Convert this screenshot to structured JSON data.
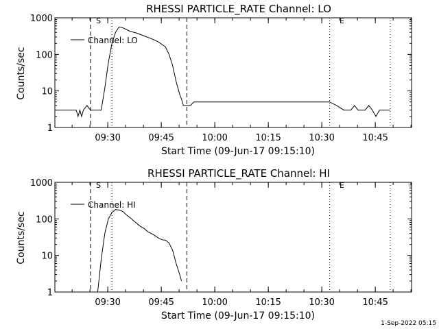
{
  "footer": {
    "date_stamp": "1-Sep-2022 05:15"
  },
  "chart_data": [
    {
      "type": "line",
      "title": "RHESSI PARTICLE_RATE Channel: LO",
      "xlabel": "Start Time (09-Jun-17 09:15:10)",
      "ylabel": "Counts/sec",
      "y_scale": "log",
      "ylim": [
        1,
        1000
      ],
      "xlim": [
        "09:15:10",
        "10:55:10"
      ],
      "y_ticks": [
        "1",
        "10",
        "100",
        "1000"
      ],
      "x_ticks": [
        "09:30",
        "09:45",
        "10:00",
        "10:15",
        "10:30",
        "10:45"
      ],
      "legend": {
        "label": "Channel: LO",
        "position": "top-left"
      },
      "markers": [
        {
          "label": "S",
          "time": "09:25:10",
          "style": "dashed"
        },
        {
          "label": "",
          "time": "09:31:10",
          "style": "dotted"
        },
        {
          "label": "",
          "time": "09:52:10",
          "style": "dashed"
        },
        {
          "label": "E",
          "time": "10:32:10",
          "style": "dotted"
        },
        {
          "label": "",
          "time": "10:49:10",
          "style": "dotted"
        }
      ],
      "series": [
        {
          "name": "Channel: LO",
          "x": [
            "09:15:10",
            "09:19:10",
            "09:21:10",
            "09:21:40",
            "09:22:10",
            "09:22:40",
            "09:23:10",
            "09:24:10",
            "09:25:10",
            "09:26:10",
            "09:27:10",
            "09:28:10",
            "09:29:10",
            "09:30:10",
            "09:31:10",
            "09:32:10",
            "09:33:10",
            "09:34:10",
            "09:35:10",
            "09:36:10",
            "09:38:10",
            "09:40:10",
            "09:42:10",
            "09:44:10",
            "09:46:10",
            "09:47:10",
            "09:48:10",
            "09:49:10",
            "09:50:10",
            "09:50:40",
            "09:51:10",
            "09:52:10",
            "09:53:10",
            "09:54:10",
            "09:55:10",
            "09:56:10",
            "09:57:10",
            "09:58:10",
            "10:00:10",
            "10:02:10",
            "10:05:10",
            "10:08:10",
            "10:11:10",
            "10:14:10",
            "10:17:10",
            "10:20:10",
            "10:23:10",
            "10:26:10",
            "10:29:10",
            "10:32:10",
            "10:34:10",
            "10:36:10",
            "10:38:10",
            "10:39:10",
            "10:40:10",
            "10:41:10",
            "10:42:10",
            "10:43:10",
            "10:44:10",
            "10:45:10",
            "10:46:10",
            "10:47:10",
            "10:48:10",
            "10:49:10"
          ],
          "y": [
            3,
            3,
            3,
            2,
            3,
            2,
            3,
            4,
            3,
            3,
            3,
            3,
            12,
            60,
            200,
            400,
            560,
            540,
            480,
            430,
            380,
            320,
            270,
            220,
            160,
            100,
            50,
            18,
            8,
            6,
            4,
            4,
            4,
            5,
            5,
            5,
            5,
            5,
            5,
            5,
            5,
            5,
            5,
            5,
            5,
            5,
            5,
            5,
            5,
            5,
            4,
            3,
            3,
            4,
            3,
            3,
            3,
            4,
            3,
            2,
            3,
            3,
            3,
            3
          ]
        }
      ]
    },
    {
      "type": "line",
      "title": "RHESSI PARTICLE_RATE Channel: HI",
      "xlabel": "Start Time (09-Jun-17 09:15:10)",
      "ylabel": "Counts/sec",
      "y_scale": "log",
      "ylim": [
        1,
        1000
      ],
      "xlim": [
        "09:15:10",
        "10:55:10"
      ],
      "y_ticks": [
        "1",
        "10",
        "100",
        "1000"
      ],
      "x_ticks": [
        "09:30",
        "09:45",
        "10:00",
        "10:15",
        "10:30",
        "10:45"
      ],
      "legend": {
        "label": "Channel: HI",
        "position": "top-left"
      },
      "markers": [
        {
          "label": "S",
          "time": "09:25:10",
          "style": "dashed"
        },
        {
          "label": "",
          "time": "09:31:10",
          "style": "dotted"
        },
        {
          "label": "",
          "time": "09:52:10",
          "style": "dashed"
        },
        {
          "label": "E",
          "time": "10:32:10",
          "style": "dotted"
        },
        {
          "label": "",
          "time": "10:49:10",
          "style": "dotted"
        }
      ],
      "series": [
        {
          "name": "Channel: HI",
          "x": [
            "09:27:10",
            "09:28:10",
            "09:29:10",
            "09:30:10",
            "09:31:10",
            "09:32:10",
            "09:33:10",
            "09:34:10",
            "09:35:10",
            "09:36:10",
            "09:37:10",
            "09:38:10",
            "09:39:10",
            "09:40:10",
            "09:41:10",
            "09:42:10",
            "09:43:10",
            "09:44:10",
            "09:45:10",
            "09:46:10",
            "09:47:10",
            "09:48:10",
            "09:49:10",
            "09:50:10",
            "09:50:40"
          ],
          "y": [
            1,
            8,
            40,
            100,
            150,
            180,
            175,
            160,
            130,
            110,
            90,
            75,
            62,
            55,
            45,
            40,
            35,
            30,
            27,
            26,
            22,
            14,
            6,
            3,
            2
          ]
        }
      ]
    }
  ]
}
